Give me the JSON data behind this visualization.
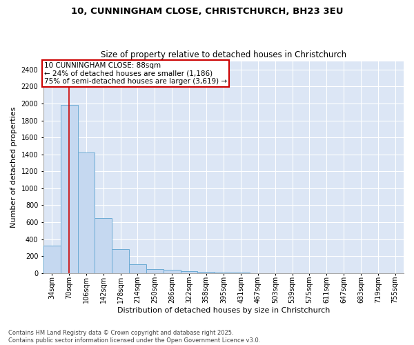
{
  "title1": "10, CUNNINGHAM CLOSE, CHRISTCHURCH, BH23 3EU",
  "title2": "Size of property relative to detached houses in Christchurch",
  "xlabel": "Distribution of detached houses by size in Christchurch",
  "ylabel": "Number of detached properties",
  "bar_color": "#c5d8f0",
  "bar_edge_color": "#6aaad4",
  "background_color": "#dce6f5",
  "grid_color": "#ffffff",
  "fig_background": "#ffffff",
  "bin_labels": [
    "34sqm",
    "70sqm",
    "106sqm",
    "142sqm",
    "178sqm",
    "214sqm",
    "250sqm",
    "286sqm",
    "322sqm",
    "358sqm",
    "395sqm",
    "431sqm",
    "467sqm",
    "503sqm",
    "539sqm",
    "575sqm",
    "611sqm",
    "647sqm",
    "683sqm",
    "719sqm",
    "755sqm"
  ],
  "bar_heights": [
    320,
    1980,
    1420,
    650,
    280,
    100,
    45,
    35,
    20,
    12,
    5,
    3,
    2,
    1,
    1,
    1,
    1,
    0,
    0,
    0,
    0
  ],
  "bin_left_edges": [
    34,
    70,
    106,
    142,
    178,
    214,
    250,
    286,
    322,
    358,
    395,
    431,
    467,
    503,
    539,
    575,
    611,
    647,
    683,
    719,
    755
  ],
  "bin_width": 36,
  "property_size": 88,
  "vline_color": "#cc0000",
  "annotation_text": "10 CUNNINGHAM CLOSE: 88sqm\n← 24% of detached houses are smaller (1,186)\n75% of semi-detached houses are larger (3,619) →",
  "annotation_box_color": "#cc0000",
  "ylim": [
    0,
    2500
  ],
  "yticks": [
    0,
    200,
    400,
    600,
    800,
    1000,
    1200,
    1400,
    1600,
    1800,
    2000,
    2200,
    2400
  ],
  "footnote": "Contains HM Land Registry data © Crown copyright and database right 2025.\nContains public sector information licensed under the Open Government Licence v3.0.",
  "title1_fontsize": 9.5,
  "title2_fontsize": 8.5,
  "xlabel_fontsize": 8,
  "ylabel_fontsize": 8,
  "tick_fontsize": 7,
  "annotation_fontsize": 7.5,
  "footnote_fontsize": 6
}
